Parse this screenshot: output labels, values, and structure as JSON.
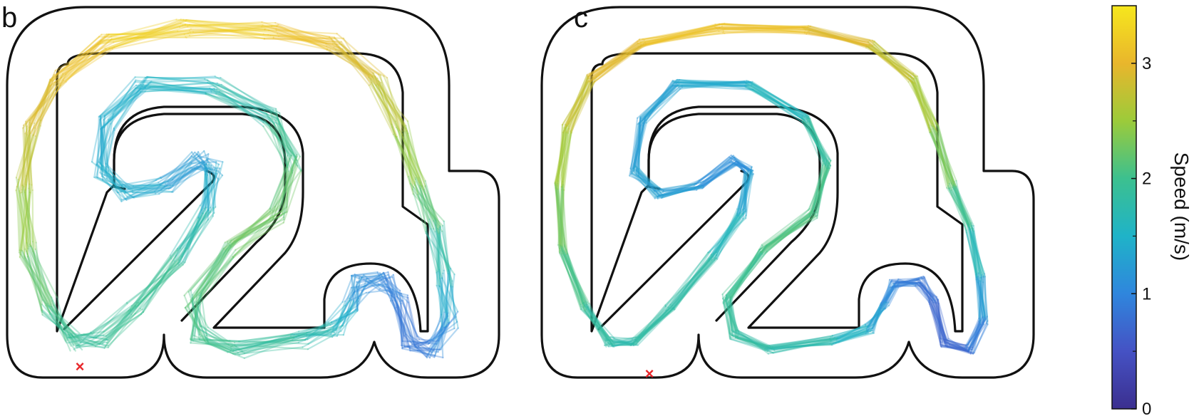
{
  "panels": [
    {
      "label": "b"
    },
    {
      "label": "c"
    }
  ],
  "colorbar": {
    "title": "Speed (m/s)",
    "min": 0,
    "max": 3.5,
    "ticks": [
      {
        "value": 0,
        "label": "0"
      },
      {
        "value": 1,
        "label": "1"
      },
      {
        "value": 2,
        "label": "2"
      },
      {
        "value": 3,
        "label": "3"
      }
    ],
    "minor_ticks": [
      0.5,
      1.5,
      2.5
    ],
    "colors": [
      "#3b2f8f",
      "#4552c4",
      "#2f86dd",
      "#1fb3c8",
      "#3cc08f",
      "#9ccb3a",
      "#e9b62c",
      "#f6e71d"
    ]
  },
  "start_marker": {
    "symbol": "×",
    "color": "#e8272b"
  }
}
